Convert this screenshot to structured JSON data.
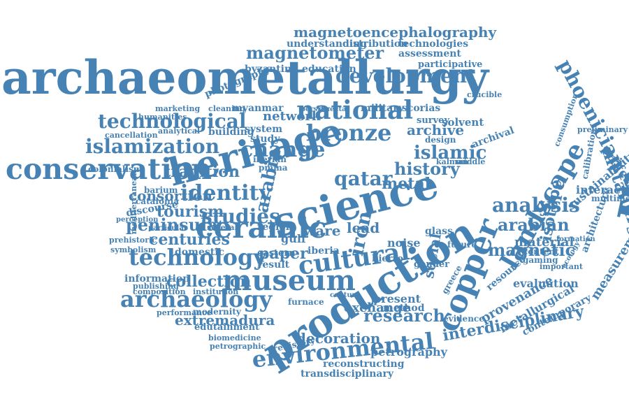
{
  "word_cloud": {
    "color": "#4682b4",
    "background": "#ffffff",
    "words": {
      "archaeometallurgy": "archaeometallurgy",
      "archaeological": "archaeological",
      "conservation": "conservation",
      "heritage": "heritage",
      "science": "science",
      "ceramic": "ceramic",
      "production": "production",
      "environmental": "environmental",
      "museum": "museum",
      "archaeology": "archaeology",
      "technology": "technology",
      "cultural": "cultural",
      "national": "national",
      "bronze": "bronze",
      "development": "development",
      "magnetoencephalography": "magnetoencephalography",
      "magnetometer": "magnetometer",
      "technological": "technological",
      "islamization": "islamization",
      "change": "change",
      "identity": "identity",
      "studies": "studies",
      "peninsula": "peninsula",
      "centuries": "centuries",
      "tourism": "tourism",
      "consortion": "consortion",
      "collection": "collection",
      "qatar": "qatar",
      "islamic": "islamic",
      "history": "history",
      "archive": "archive",
      "metal": "metal",
      "copper": "copper",
      "landscape": "landscape",
      "phoenician": "phoenician",
      "analysis": "analysis",
      "arabian": "arabian",
      "magnetic": "magnetic",
      "interdisciplinary": "interdisciplinary",
      "metallurgy": "metallurgy",
      "isotope": "isotope",
      "research": "research",
      "extremadura": "extremadura",
      "decoration": "decoration",
      "exchange": "exchange",
      "petrography": "petrography",
      "reconstructing": "reconstructing",
      "transdisciplinary": "transdisciplinary",
      "paper": "paper",
      "tradition": "tradition",
      "ware": "ware",
      "lead": "lead",
      "social": "social",
      "material": "material",
      "sustainability": "sustainability",
      "interaction": "interaction",
      "professional": "professional",
      "measurement": "measurement",
      "evaluation": "evaluation",
      "provenance": "provenance",
      "metallurgical": "metallurgical",
      "contemporary": "contemporary",
      "resource": "resource",
      "architecture": "architecture",
      "iron": "iron",
      "arabia": "arabia",
      "assessment": "assessment",
      "participative": "participative",
      "understanding": "understanding",
      "distribution": "distribution",
      "technologies": "technologies",
      "byzantine": "byzantine",
      "education": "education",
      "photography": "photography",
      "network": "network",
      "myanmar": "myanmar",
      "military": "military",
      "escorias": "escorias",
      "survey": "survey",
      "solvent": "solvent",
      "design": "design",
      "system": "system",
      "study": "study",
      "building": "building",
      "marketing": "marketing",
      "cleaning": "cleaning",
      "humanities": "humanities",
      "cancellation": "cancellation",
      "analytical": "analytical",
      "colonialism": "colonialism",
      "iberian": "iberian",
      "pmma": "pmma",
      "barium": "barium",
      "catalonia": "catalonia",
      "discourse": "discourse",
      "perception": "perception",
      "prehistoric": "prehistoric",
      "symbolism": "symbolism",
      "domestic": "domestic",
      "region": "region",
      "gulf": "gulf",
      "eastern": "eastern",
      "iberia": "iberia",
      "result": "result",
      "information": "information",
      "publishing": "publishing",
      "composition": "composition",
      "performance": "performance",
      "modernity": "modernity",
      "edutainment": "edutainment",
      "biomedicine": "biomedicine",
      "petrographic": "petrographic",
      "prehistory": "prehistory",
      "furnace": "furnace",
      "method": "method",
      "present": "present",
      "evidence": "evidence",
      "greece": "greece",
      "gender": "gender",
      "noise": "noise",
      "hierro": "hierro",
      "glass": "glass",
      "future": "future",
      "content": "content",
      "gaming": "gaming",
      "important": "important",
      "mediterranean": "mediterranean",
      "multimedia": "multimedia",
      "calibration": "calibration",
      "preliminary": "preliminary",
      "consumption": "consumption",
      "crucible": "crucible",
      "kalman": "kalman",
      "middle": "middle",
      "archival": "archival",
      "ecology": "ecology",
      "formation": "formation",
      "persian": "persian",
      "directa": "directa",
      "century": "century",
      "several": "several",
      "particular": "particular",
      "institution": "institution"
    }
  }
}
